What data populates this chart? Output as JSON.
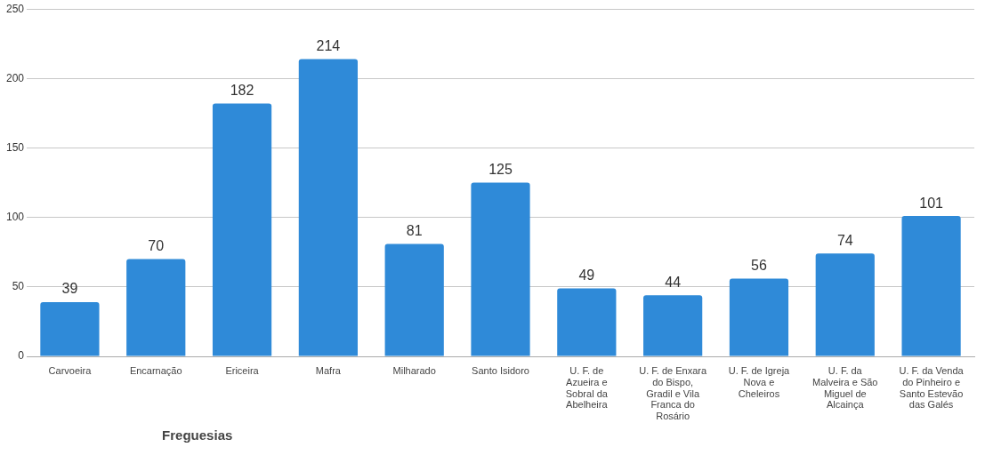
{
  "chart_data": {
    "type": "bar",
    "xlabel": "Freguesias",
    "categories": [
      "Carvoeira",
      "Encarnação",
      "Ericeira",
      "Mafra",
      "Milharado",
      "Santo Isidoro",
      "U. F. de Azueira e Sobral da Abelheira",
      "U. F. de Enxara do Bispo, Gradil e Vila Franca do Rosário",
      "U. F. de Igreja Nova e Cheleiros",
      "U. F. da Malveira e São Miguel de Alcainça",
      "U. F. da Venda do Pinheiro e Santo Estevão das Galés"
    ],
    "values": [
      39,
      70,
      182,
      214,
      81,
      125,
      49,
      44,
      56,
      74,
      101
    ],
    "color": "#2f8ad8",
    "ylim": [
      0,
      250
    ],
    "yticks": [
      0,
      50,
      100,
      150,
      200,
      250
    ],
    "grid": "y",
    "data_labels": true,
    "legend": false
  }
}
